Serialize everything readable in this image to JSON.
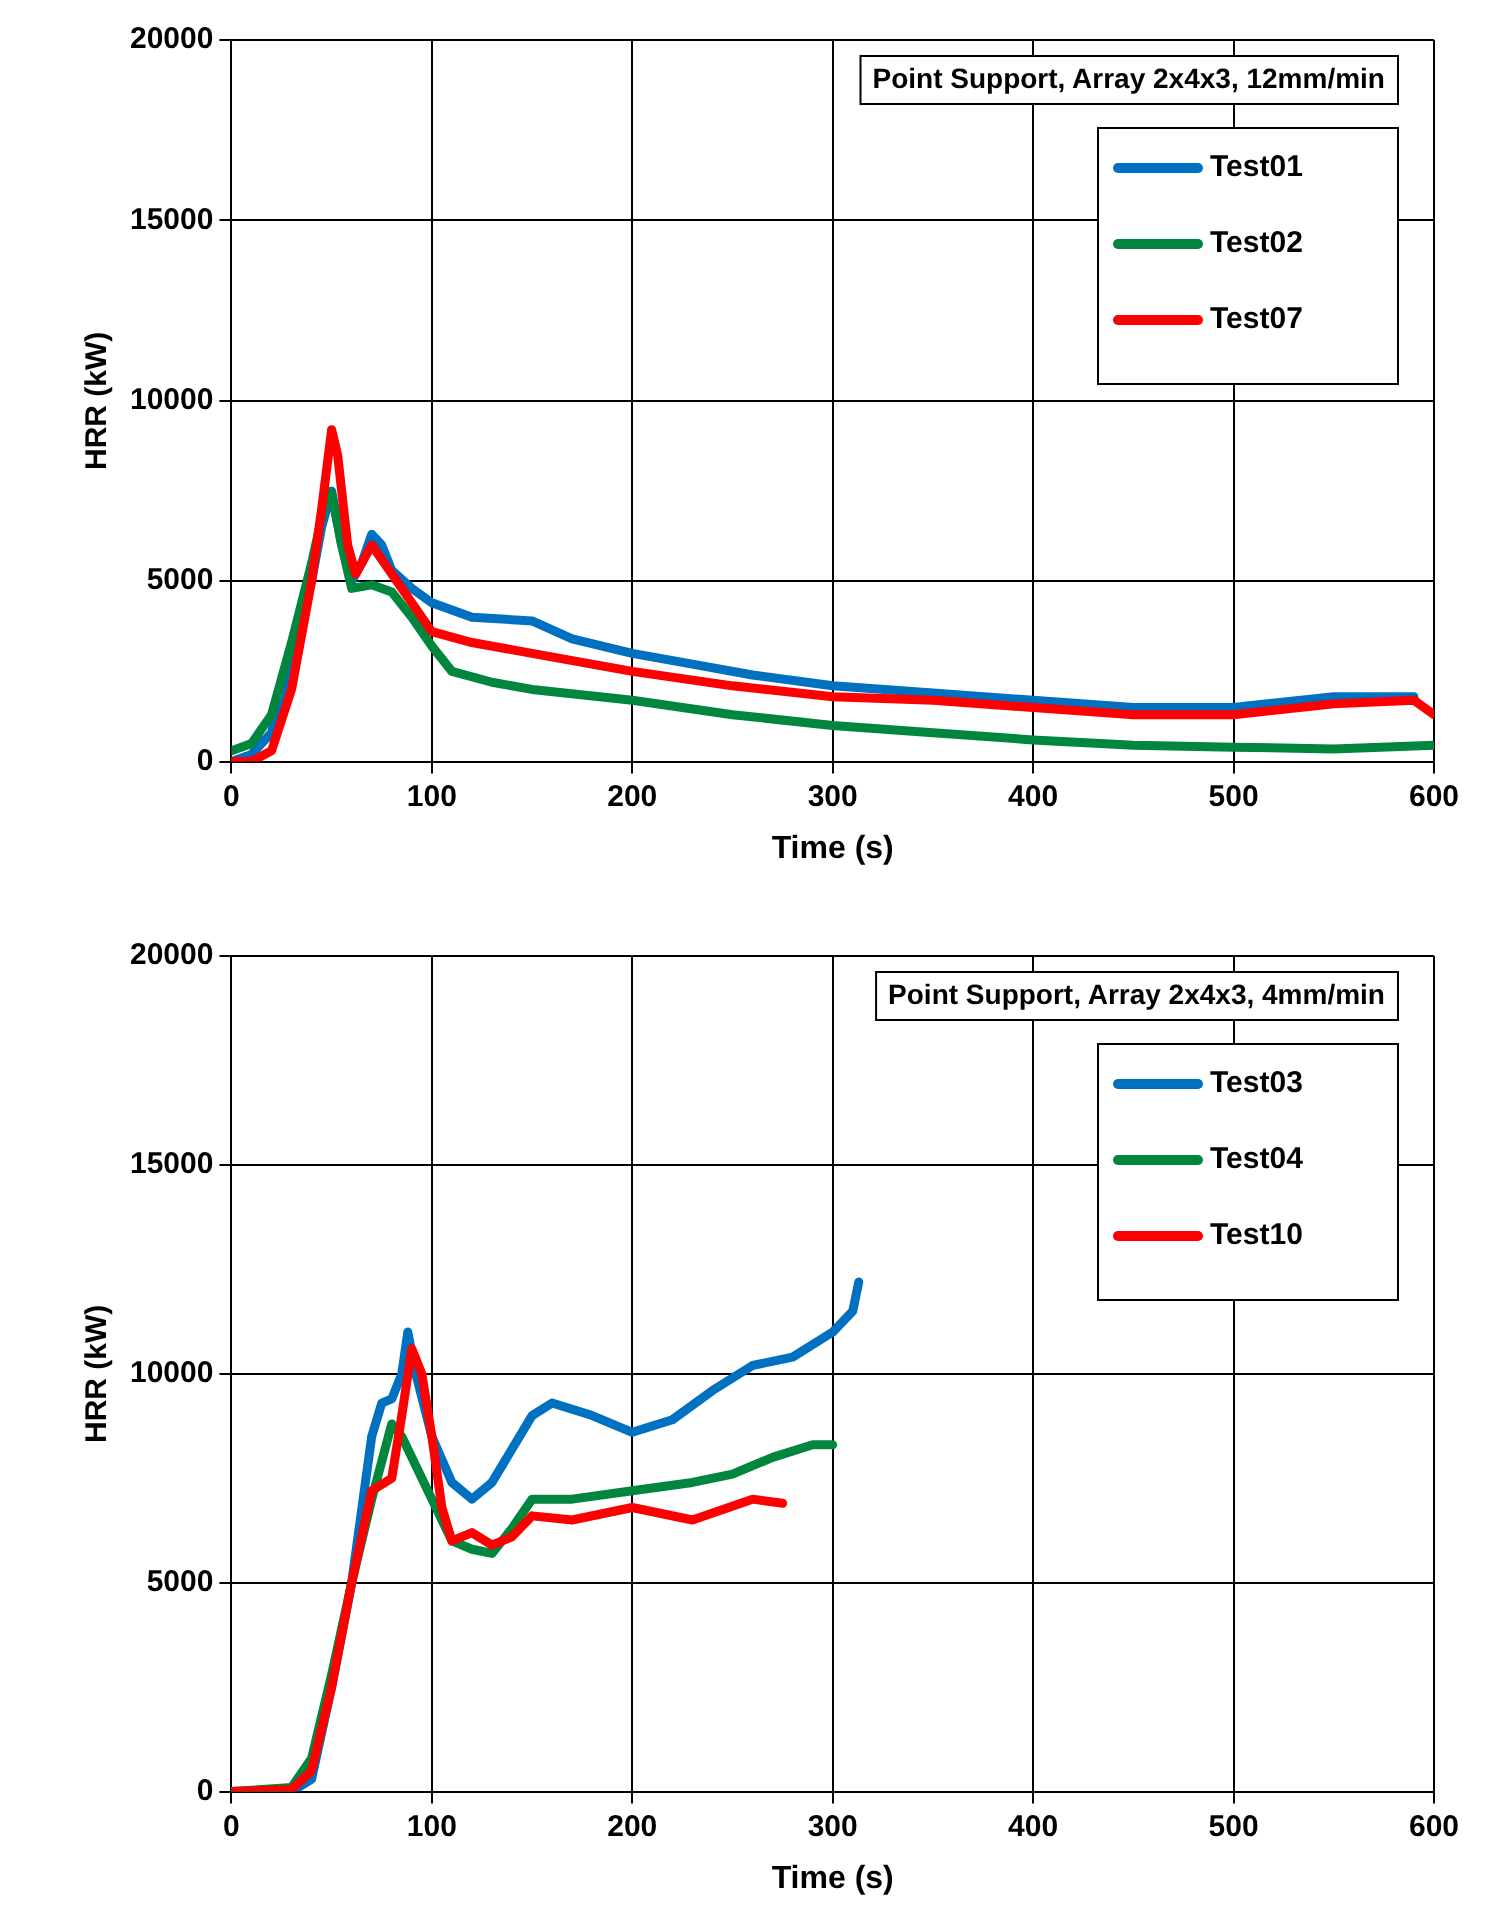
{
  "chart_data": [
    {
      "type": "line",
      "title": "Point Support, Array 2x4x3, 12mm/min",
      "xlabel": "Time (s)",
      "ylabel": "HRR (kW)",
      "xlim": [
        0,
        600
      ],
      "xticks": [
        0,
        100,
        200,
        300,
        400,
        500,
        600
      ],
      "ylim": [
        0,
        20000
      ],
      "yticks": [
        0,
        5000,
        10000,
        15000,
        20000
      ],
      "grid": true,
      "legend": "top right",
      "marker": "none",
      "line_style": "solid",
      "series": [
        {
          "name": "Test01",
          "color": "#0070c0",
          "x": [
            0,
            10,
            20,
            30,
            40,
            45,
            50,
            55,
            60,
            65,
            70,
            75,
            80,
            90,
            100,
            120,
            150,
            170,
            200,
            230,
            260,
            300,
            350,
            400,
            450,
            500,
            550,
            590
          ],
          "values": [
            0,
            200,
            800,
            2800,
            5000,
            6500,
            7500,
            6000,
            5000,
            5500,
            6300,
            6000,
            5300,
            4800,
            4400,
            4000,
            3900,
            3400,
            3000,
            2700,
            2400,
            2100,
            1900,
            1700,
            1500,
            1500,
            1800,
            1800
          ]
        },
        {
          "name": "Test02",
          "color": "#00863d",
          "x": [
            0,
            10,
            20,
            30,
            40,
            48,
            50,
            55,
            60,
            70,
            80,
            90,
            100,
            110,
            130,
            150,
            200,
            250,
            300,
            350,
            400,
            450,
            500,
            550,
            600
          ],
          "values": [
            300,
            500,
            1300,
            3300,
            5500,
            7500,
            7400,
            6000,
            4800,
            4900,
            4700,
            4000,
            3200,
            2500,
            2200,
            2000,
            1700,
            1300,
            1000,
            800,
            600,
            450,
            400,
            350,
            450
          ]
        },
        {
          "name": "Test07",
          "color": "#ff0000",
          "x": [
            0,
            10,
            20,
            30,
            40,
            45,
            50,
            53,
            58,
            62,
            70,
            75,
            85,
            100,
            120,
            150,
            200,
            250,
            300,
            350,
            400,
            450,
            500,
            550,
            590,
            600
          ],
          "values": [
            0,
            0,
            300,
            2000,
            5000,
            7000,
            9200,
            8500,
            6000,
            5200,
            6000,
            5600,
            4800,
            3600,
            3300,
            3000,
            2500,
            2100,
            1800,
            1700,
            1500,
            1300,
            1300,
            1600,
            1700,
            1300
          ]
        }
      ]
    },
    {
      "type": "line",
      "title": "Point Support, Array 2x4x3, 4mm/min",
      "xlabel": "Time (s)",
      "ylabel": "HRR (kW)",
      "xlim": [
        0,
        600
      ],
      "xticks": [
        0,
        100,
        200,
        300,
        400,
        500,
        600
      ],
      "ylim": [
        0,
        20000
      ],
      "yticks": [
        0,
        5000,
        10000,
        15000,
        20000
      ],
      "grid": true,
      "legend": "top right",
      "marker": "none",
      "line_style": "solid",
      "series": [
        {
          "name": "Test03",
          "color": "#0070c0",
          "x": [
            0,
            30,
            40,
            50,
            60,
            70,
            75,
            80,
            85,
            88,
            92,
            100,
            110,
            120,
            130,
            140,
            150,
            160,
            180,
            200,
            220,
            240,
            260,
            280,
            300,
            310,
            313
          ],
          "values": [
            0,
            0,
            300,
            2500,
            5000,
            8500,
            9300,
            9400,
            10000,
            11000,
            10000,
            8500,
            7400,
            7000,
            7400,
            8200,
            9000,
            9300,
            9000,
            8600,
            8900,
            9600,
            10200,
            10400,
            11000,
            11500,
            12200
          ]
        },
        {
          "name": "Test04",
          "color": "#00863d",
          "x": [
            0,
            30,
            40,
            50,
            60,
            70,
            80,
            85,
            90,
            100,
            110,
            120,
            130,
            140,
            150,
            170,
            200,
            230,
            250,
            270,
            290,
            300
          ],
          "values": [
            0,
            100,
            800,
            2800,
            5000,
            7000,
            8800,
            8500,
            8000,
            7000,
            6000,
            5800,
            5700,
            6300,
            7000,
            7000,
            7200,
            7400,
            7600,
            8000,
            8300,
            8300
          ]
        },
        {
          "name": "Test10",
          "color": "#ff0000",
          "x": [
            0,
            30,
            40,
            50,
            60,
            70,
            80,
            85,
            90,
            95,
            100,
            105,
            110,
            120,
            130,
            140,
            150,
            170,
            200,
            230,
            260,
            275
          ],
          "values": [
            0,
            50,
            500,
            2500,
            5000,
            7200,
            7500,
            9000,
            10600,
            10000,
            8500,
            6800,
            6000,
            6200,
            5900,
            6100,
            6600,
            6500,
            6800,
            6500,
            7000,
            6900
          ]
        }
      ]
    }
  ]
}
